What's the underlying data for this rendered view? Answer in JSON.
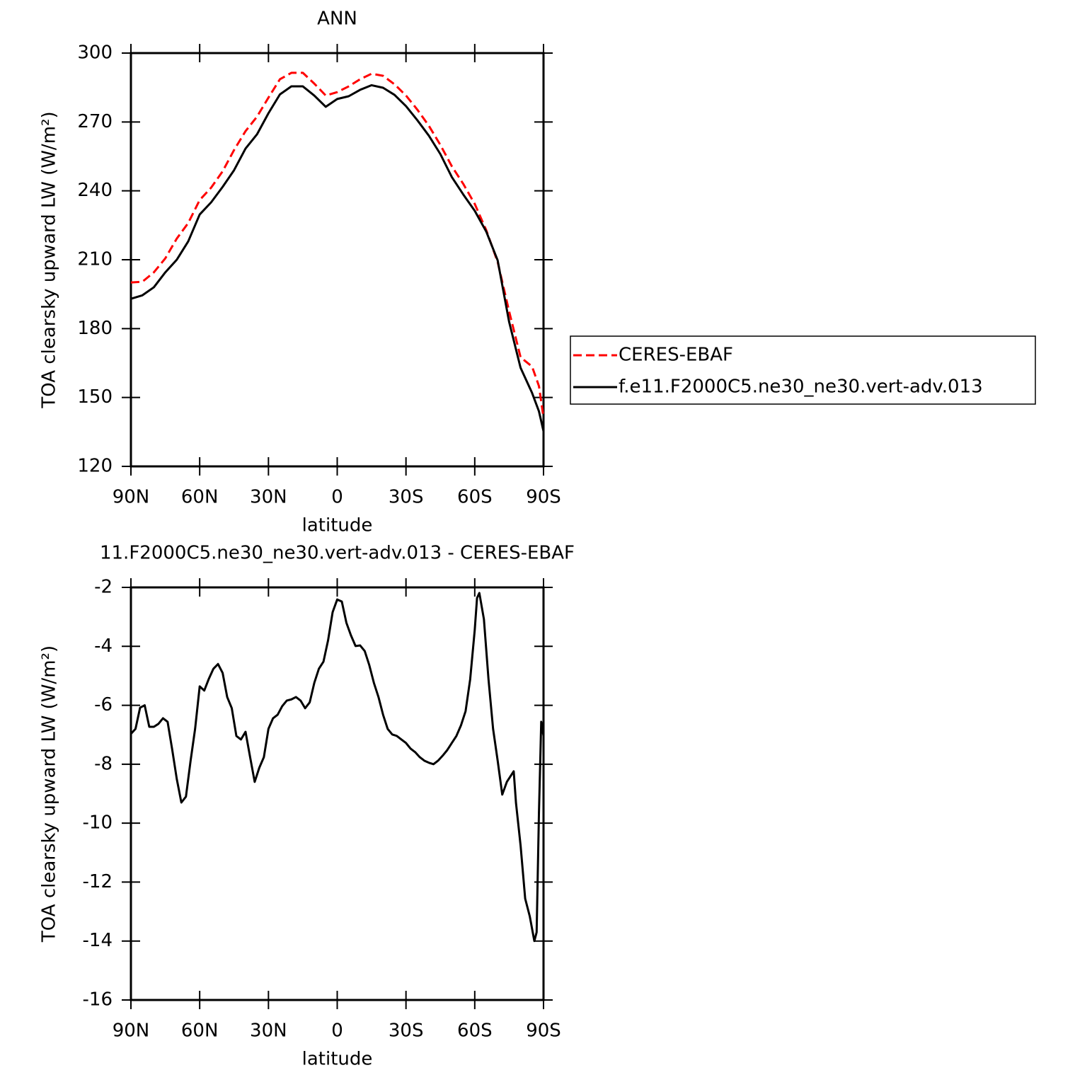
{
  "chart_data": [
    {
      "type": "line",
      "title": "ANN",
      "x_label": "latitude",
      "y_label": "TOA clearsky upward LW (W/m²)",
      "x": [
        90,
        85,
        80,
        75,
        70,
        65,
        60,
        55,
        50,
        45,
        40,
        35,
        30,
        25,
        20,
        15,
        10,
        5,
        0,
        -5,
        -10,
        -15,
        -20,
        -25,
        -30,
        -35,
        -40,
        -45,
        -50,
        -55,
        -60,
        -65,
        -70,
        -75,
        -80,
        -85,
        -88,
        -90
      ],
      "series": [
        {
          "name": "CERES-EBAF",
          "color": "#ff0000",
          "linestyle": "dashed",
          "values": [
            200.1,
            200.4,
            204.5,
            210.6,
            219.2,
            226,
            236,
            241.4,
            248.5,
            257.8,
            266,
            272.3,
            280.6,
            288.6,
            291.4,
            291.4,
            286.7,
            281.5,
            283,
            285.5,
            288.6,
            291,
            290.1,
            286.4,
            281.5,
            275.3,
            268.3,
            260,
            250.7,
            243,
            234.3,
            222.9,
            209,
            187.5,
            167.5,
            163.5,
            155,
            141.3
          ]
        },
        {
          "name": "f.e11.F2000C5.ne30_ne30.vert-adv.013",
          "color": "#000000",
          "linestyle": "solid",
          "values": [
            193,
            194.5,
            198,
            204.5,
            210,
            218,
            229.7,
            235,
            241.7,
            249,
            258.4,
            264.6,
            273.8,
            282,
            285.5,
            285.5,
            281.5,
            276.6,
            280,
            281.2,
            284,
            286,
            284.9,
            281.8,
            276.9,
            270.7,
            264,
            256,
            246,
            238.4,
            231.3,
            222.3,
            209.7,
            182.9,
            162.9,
            152,
            144,
            135.3
          ]
        }
      ],
      "xlim": [
        90,
        -90
      ],
      "xticks": [
        {
          "value": 90,
          "label": "90N"
        },
        {
          "value": 60,
          "label": "60N"
        },
        {
          "value": 30,
          "label": "30N"
        },
        0,
        {
          "value": -30,
          "label": "30S"
        },
        {
          "value": -60,
          "label": "60S"
        },
        {
          "value": -90,
          "label": "90S"
        }
      ],
      "ylim": [
        120,
        300
      ],
      "yticks": [
        120,
        150,
        180,
        210,
        240,
        270,
        300
      ],
      "legend": "right"
    },
    {
      "type": "line",
      "title": "11.F2000C5.ne30_ne30.vert-adv.013 - CERES-EBAF",
      "x_label": "latitude",
      "y_label": "TOA clearsky upward LW (W/m²)",
      "x": [
        90,
        88,
        86,
        84,
        82,
        80,
        78,
        76,
        74,
        72,
        70,
        68,
        66,
        64,
        62,
        60,
        58,
        56,
        54,
        52,
        50,
        48,
        46,
        44,
        42,
        40,
        38,
        36,
        34,
        32,
        30,
        28,
        26,
        24,
        22,
        20,
        18,
        16,
        14,
        12,
        10,
        8,
        6,
        4,
        2,
        0,
        -2,
        -4,
        -6,
        -8,
        -10,
        -12,
        -14,
        -16,
        -18,
        -20,
        -22,
        -24,
        -26,
        -28,
        -30,
        -32,
        -34,
        -36,
        -38,
        -40,
        -42,
        -44,
        -46,
        -48,
        -50,
        -52,
        -54,
        -56,
        -58,
        -60,
        -61,
        -62,
        -64,
        -66,
        -68,
        -70,
        -72,
        -74,
        -76,
        -77,
        -78,
        -80,
        -82,
        -84,
        -86,
        -87,
        -88,
        -89,
        -90
      ],
      "color": "#000000",
      "values": [
        -6.97,
        -6.8,
        -6.08,
        -6,
        -6.73,
        -6.73,
        -6.63,
        -6.44,
        -6.56,
        -7.5,
        -8.5,
        -9.3,
        -9.1,
        -7.9,
        -6.8,
        -5.36,
        -5.5,
        -5.1,
        -4.76,
        -4.6,
        -4.9,
        -5.72,
        -6.1,
        -7.04,
        -7.16,
        -6.9,
        -7.76,
        -8.6,
        -8.12,
        -7.76,
        -6.8,
        -6.44,
        -6.32,
        -6.03,
        -5.84,
        -5.8,
        -5.72,
        -5.84,
        -6.1,
        -5.9,
        -5.24,
        -4.76,
        -4.52,
        -3.8,
        -2.84,
        -2.41,
        -2.48,
        -3.2,
        -3.63,
        -3.99,
        -3.97,
        -4.16,
        -4.64,
        -5.24,
        -5.72,
        -6.32,
        -6.8,
        -6.99,
        -7.04,
        -7.16,
        -7.28,
        -7.47,
        -7.59,
        -7.76,
        -7.88,
        -7.95,
        -8.0,
        -7.88,
        -7.71,
        -7.52,
        -7.28,
        -7.04,
        -6.68,
        -6.2,
        -5.12,
        -3.44,
        -2.36,
        -2.19,
        -3.08,
        -5.12,
        -6.8,
        -7.88,
        -9.03,
        -8.6,
        -8.36,
        -8.24,
        -9.32,
        -10.76,
        -12.56,
        -13.16,
        -14.0,
        -13.7,
        -9.68,
        -6.56,
        -7.04
      ],
      "xlim": [
        90,
        -90
      ],
      "xticks": [
        {
          "value": 90,
          "label": "90N"
        },
        {
          "value": 60,
          "label": "60N"
        },
        {
          "value": 30,
          "label": "30N"
        },
        0,
        {
          "value": -30,
          "label": "30S"
        },
        {
          "value": -60,
          "label": "60S"
        },
        {
          "value": -90,
          "label": "90S"
        }
      ],
      "ylim": [
        -16,
        -2
      ],
      "yticks": [
        -16,
        -14,
        -12,
        -10,
        -8,
        -6,
        -4,
        -2
      ]
    }
  ]
}
